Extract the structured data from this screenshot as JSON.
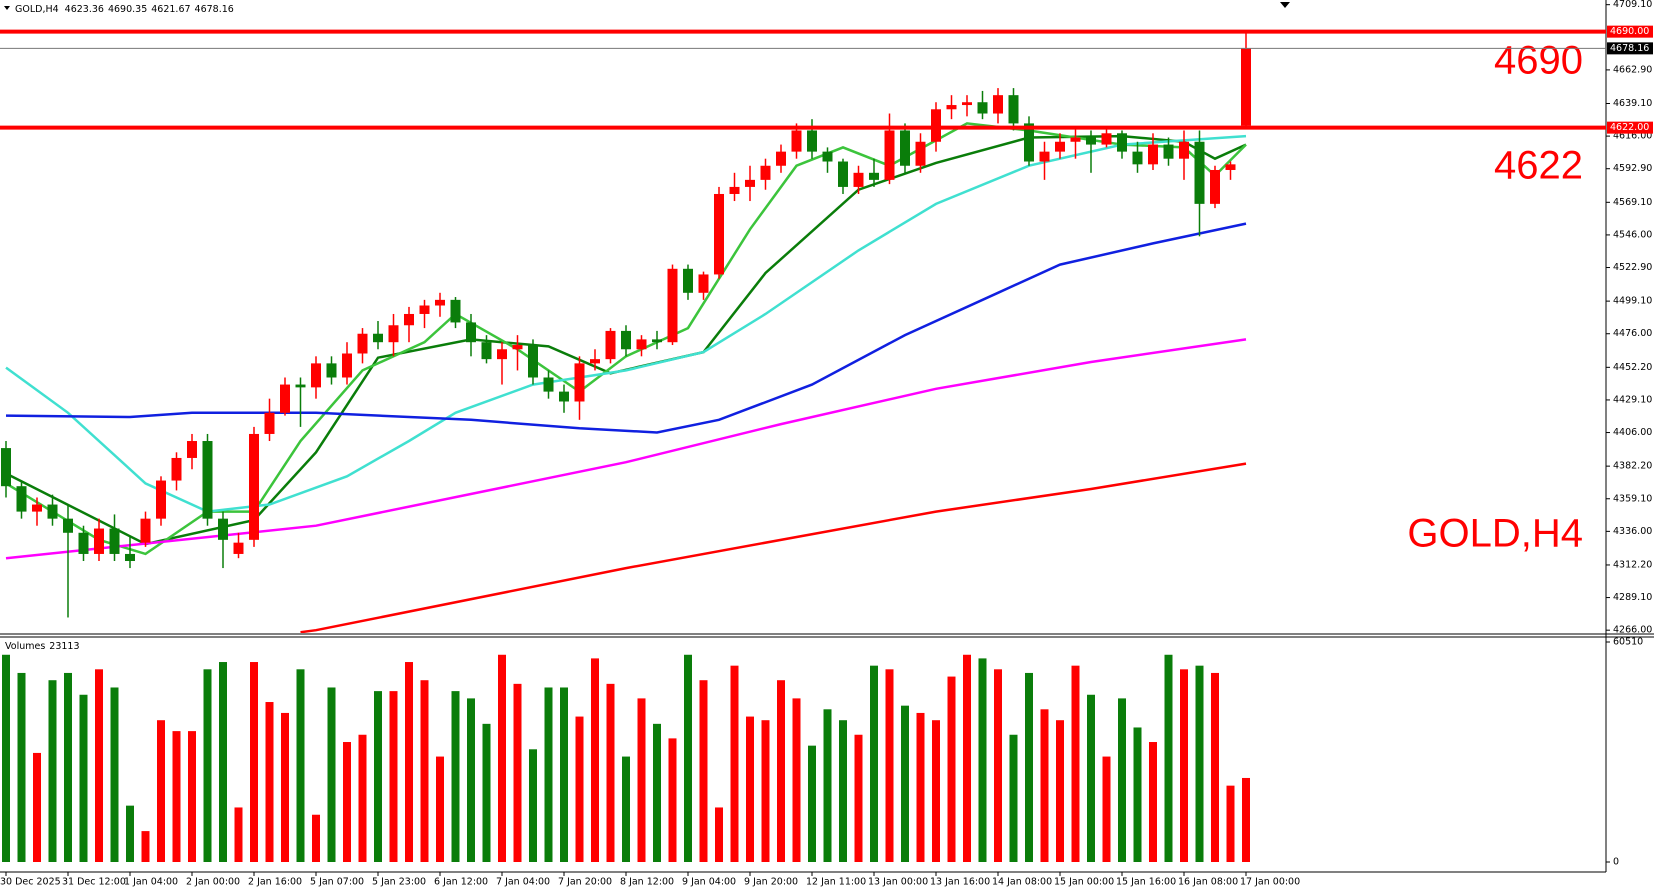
{
  "chart_data": {
    "type": "candlestick",
    "title": "GOLD,H4",
    "ohlc": [
      [
        4395,
        4400,
        4360,
        4368
      ],
      [
        4368,
        4372,
        4345,
        4350
      ],
      [
        4350,
        4360,
        4340,
        4355
      ],
      [
        4355,
        4362,
        4340,
        4345
      ],
      [
        4345,
        4355,
        4275,
        4335
      ],
      [
        4335,
        4340,
        4315,
        4320
      ],
      [
        4320,
        4345,
        4315,
        4338
      ],
      [
        4338,
        4348,
        4315,
        4320
      ],
      [
        4320,
        4332,
        4310,
        4315
      ],
      [
        4328,
        4350,
        4325,
        4345
      ],
      [
        4345,
        4375,
        4340,
        4372
      ],
      [
        4372,
        4392,
        4365,
        4388
      ],
      [
        4388,
        4405,
        4380,
        4400
      ],
      [
        4400,
        4405,
        4340,
        4345
      ],
      [
        4345,
        4350,
        4310,
        4330
      ],
      [
        4320,
        4335,
        4317,
        4328
      ],
      [
        4330,
        4410,
        4325,
        4405
      ],
      [
        4405,
        4430,
        4400,
        4420
      ],
      [
        4420,
        4445,
        4418,
        4440
      ],
      [
        4440,
        4445,
        4410,
        4438
      ],
      [
        4438,
        4460,
        4430,
        4455
      ],
      [
        4455,
        4460,
        4440,
        4445
      ],
      [
        4445,
        4470,
        4440,
        4462
      ],
      [
        4462,
        4480,
        4455,
        4476
      ],
      [
        4476,
        4485,
        4465,
        4470
      ],
      [
        4470,
        4490,
        4460,
        4482
      ],
      [
        4482,
        4495,
        4470,
        4490
      ],
      [
        4490,
        4500,
        4480,
        4496
      ],
      [
        4496,
        4505,
        4488,
        4500
      ],
      [
        4500,
        4502,
        4480,
        4484
      ],
      [
        4484,
        4490,
        4460,
        4470
      ],
      [
        4470,
        4475,
        4455,
        4458
      ],
      [
        4458,
        4470,
        4440,
        4465
      ],
      [
        4465,
        4475,
        4450,
        4468
      ],
      [
        4468,
        4472,
        4440,
        4445
      ],
      [
        4445,
        4450,
        4430,
        4435
      ],
      [
        4435,
        4440,
        4420,
        4428
      ],
      [
        4428,
        4460,
        4415,
        4455
      ],
      [
        4455,
        4465,
        4450,
        4458
      ],
      [
        4458,
        4480,
        4455,
        4478
      ],
      [
        4478,
        4482,
        4460,
        4465
      ],
      [
        4465,
        4475,
        4460,
        4472
      ],
      [
        4472,
        4478,
        4465,
        4470
      ],
      [
        4470,
        4525,
        4468,
        4522
      ],
      [
        4522,
        4525,
        4500,
        4505
      ],
      [
        4505,
        4520,
        4500,
        4518
      ],
      [
        4518,
        4580,
        4515,
        4575
      ],
      [
        4575,
        4590,
        4570,
        4580
      ],
      [
        4580,
        4595,
        4570,
        4585
      ],
      [
        4585,
        4600,
        4578,
        4595
      ],
      [
        4595,
        4610,
        4590,
        4605
      ],
      [
        4605,
        4625,
        4600,
        4620
      ],
      [
        4620,
        4628,
        4600,
        4605
      ],
      [
        4605,
        4608,
        4590,
        4598
      ],
      [
        4598,
        4600,
        4575,
        4580
      ],
      [
        4580,
        4595,
        4575,
        4590
      ],
      [
        4590,
        4600,
        4580,
        4585
      ],
      [
        4585,
        4632,
        4582,
        4620
      ],
      [
        4620,
        4625,
        4590,
        4595
      ],
      [
        4595,
        4618,
        4590,
        4612
      ],
      [
        4612,
        4640,
        4605,
        4635
      ],
      [
        4635,
        4645,
        4628,
        4638
      ],
      [
        4638,
        4645,
        4630,
        4640
      ],
      [
        4640,
        4648,
        4628,
        4632
      ],
      [
        4632,
        4650,
        4625,
        4645
      ],
      [
        4645,
        4650,
        4620,
        4625
      ],
      [
        4625,
        4630,
        4595,
        4598
      ],
      [
        4598,
        4612,
        4585,
        4605
      ],
      [
        4605,
        4618,
        4600,
        4612
      ],
      [
        4612,
        4622,
        4600,
        4615
      ],
      [
        4615,
        4620,
        4590,
        4610
      ],
      [
        4610,
        4622,
        4608,
        4618
      ],
      [
        4618,
        4620,
        4600,
        4605
      ],
      [
        4605,
        4612,
        4590,
        4596
      ],
      [
        4596,
        4618,
        4592,
        4610
      ],
      [
        4610,
        4615,
        4595,
        4600
      ],
      [
        4600,
        4620,
        4585,
        4612
      ],
      [
        4612,
        4620,
        4545,
        4568
      ],
      [
        4568,
        4595,
        4565,
        4592
      ],
      [
        4592,
        4598,
        4585,
        4596
      ],
      [
        4623.36,
        4690.35,
        4621.67,
        4678.16
      ]
    ],
    "volumes": [
      57000,
      52000,
      30000,
      50000,
      52000,
      46000,
      53000,
      48000,
      15500,
      8500,
      39000,
      36000,
      36000,
      53000,
      55000,
      15000,
      55000,
      44000,
      41000,
      53000,
      13000,
      48000,
      33000,
      35000,
      47000,
      47000,
      55000,
      50000,
      29000,
      47000,
      45000,
      38000,
      57000,
      49000,
      31000,
      48000,
      48000,
      40000,
      56000,
      49000,
      29000,
      45000,
      38000,
      34000,
      57000,
      50000,
      15000,
      54000,
      40000,
      39000,
      50000,
      45000,
      32000,
      42000,
      39000,
      35000,
      54000,
      53000,
      43000,
      41000,
      39000,
      51000,
      57000,
      56000,
      53000,
      35000,
      52000,
      42000,
      39000,
      54000,
      46000,
      29000,
      45000,
      37000,
      33000,
      57000,
      53000,
      54000,
      52000,
      21000,
      23113
    ],
    "volume_label": "Volumes",
    "bull_color": "#ff0000",
    "bear_color": "#0a7d0a",
    "ylim": [
      4264,
      4711
    ],
    "yticks": [
      {
        "value": 4709.1,
        "label": "4709.10"
      },
      {
        "value": 4662.9,
        "label": "4662.90"
      },
      {
        "value": 4639.1,
        "label": "4639.10"
      },
      {
        "value": 4616,
        "label": "4616.00"
      },
      {
        "value": 4592.9,
        "label": "4592.90"
      },
      {
        "value": 4569.1,
        "label": "4569.10"
      },
      {
        "value": 4546,
        "label": "4546.00"
      },
      {
        "value": 4522.9,
        "label": "4522.90"
      },
      {
        "value": 4499.1,
        "label": "4499.10"
      },
      {
        "value": 4476,
        "label": "4476.00"
      },
      {
        "value": 4452.2,
        "label": "4452.20"
      },
      {
        "value": 4429.1,
        "label": "4429.10"
      },
      {
        "value": 4406,
        "label": "4406.00"
      },
      {
        "value": 4382.2,
        "label": "4382.20"
      },
      {
        "value": 4359.1,
        "label": "4359.10"
      },
      {
        "value": 4336,
        "label": "4336.00"
      },
      {
        "value": 4312.2,
        "label": "4312.20"
      },
      {
        "value": 4289.1,
        "label": "4289.10"
      },
      {
        "value": 4266,
        "label": "4266.00"
      }
    ],
    "volume_ylim": [
      0,
      60510
    ],
    "volume_yticks": [
      60510,
      0
    ],
    "xticks": [
      {
        "value": 0,
        "label": "30 Dec 2025"
      },
      {
        "value": 4,
        "label": "31 Dec 12:00"
      },
      {
        "value": 8,
        "label": "1 Jan 04:00"
      },
      {
        "value": 12,
        "label": "2 Jan 00:00"
      },
      {
        "value": 16,
        "label": "2 Jan 16:00"
      },
      {
        "value": 20,
        "label": "5 Jan 07:00"
      },
      {
        "value": 24,
        "label": "5 Jan 23:00"
      },
      {
        "value": 28,
        "label": "6 Jan 12:00"
      },
      {
        "value": 32,
        "label": "7 Jan 04:00"
      },
      {
        "value": 36,
        "label": "7 Jan 20:00"
      },
      {
        "value": 40,
        "label": "8 Jan 12:00"
      },
      {
        "value": 44,
        "label": "9 Jan 04:00"
      },
      {
        "value": 48,
        "label": "9 Jan 20:00"
      },
      {
        "value": 52,
        "label": "12 Jan 11:00"
      },
      {
        "value": 56,
        "label": "13 Jan 00:00"
      },
      {
        "value": 60,
        "label": "13 Jan 16:00"
      },
      {
        "value": 64,
        "label": "14 Jan 08:00"
      },
      {
        "value": 68,
        "label": "15 Jan 00:00"
      },
      {
        "value": 72,
        "label": "15 Jan 16:00"
      },
      {
        "value": 76,
        "label": "16 Jan 08:00"
      },
      {
        "value": 80,
        "label": "17 Jan 00:00"
      }
    ],
    "levels": [
      {
        "value": 4690,
        "label": "4690.00",
        "color": "#ff0000"
      },
      {
        "value": 4622,
        "label": "4622.00",
        "color": "#ff0000"
      }
    ],
    "ma_lines": [
      {
        "color": "#0a7d0a",
        "x": [
          0,
          9,
          16,
          20,
          24,
          30,
          35,
          39,
          45,
          49,
          55,
          60,
          66,
          72,
          76,
          78,
          80
        ],
        "values": [
          4377,
          4327,
          4344,
          4392,
          4459,
          4472,
          4467,
          4448,
          4463,
          4519,
          4578,
          4597,
          4615,
          4616,
          4612,
          4600,
          4610
        ]
      },
      {
        "color": "#3cc43c",
        "x": [
          0,
          6,
          9,
          13,
          16,
          19,
          23,
          27,
          29,
          33,
          37,
          40,
          44,
          48,
          51,
          54,
          57,
          62,
          66,
          72,
          76,
          78,
          80
        ],
        "values": [
          4370,
          4330,
          4320,
          4350,
          4350,
          4400,
          4450,
          4470,
          4490,
          4465,
          4435,
          4460,
          4480,
          4550,
          4595,
          4608,
          4595,
          4625,
          4620,
          4610,
          4608,
          4588,
          4610
        ]
      },
      {
        "color": "#40e0d0",
        "x": [
          0,
          4,
          9,
          13,
          17,
          22,
          26,
          29,
          34,
          40,
          45,
          49,
          55,
          60,
          66,
          72,
          80
        ],
        "values": [
          4452,
          4420,
          4370,
          4350,
          4355,
          4375,
          4400,
          4420,
          4440,
          4450,
          4463,
          4490,
          4535,
          4568,
          4595,
          4610,
          4616
        ]
      },
      {
        "color": "#1020e0",
        "x": [
          0,
          8,
          12,
          20,
          30,
          37,
          42,
          46,
          52,
          58,
          64,
          68,
          74,
          80
        ],
        "values": [
          4418,
          4417,
          4420,
          4420,
          4415,
          4409,
          4406,
          4415,
          4440,
          4475,
          4505,
          4525,
          4540,
          4554
        ]
      },
      {
        "color": "#ff00ff",
        "x": [
          0,
          20,
          40,
          50,
          60,
          70,
          80
        ],
        "values": [
          4317,
          4340,
          4385,
          4412,
          4437,
          4456,
          4472
        ]
      },
      {
        "color": "#ff0000",
        "x": [
          19,
          20,
          40,
          60,
          70,
          80
        ],
        "values": [
          4264.6,
          4266,
          4310,
          4350,
          4366,
          4384
        ]
      }
    ]
  }
}
